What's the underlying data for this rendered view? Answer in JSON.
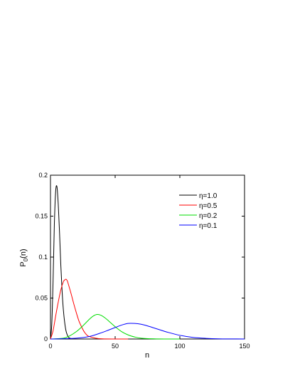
{
  "chart_data": {
    "type": "line",
    "xlabel": "n",
    "ylabel_main": "P",
    "ylabel_sub": "0",
    "ylabel_tail": "(n)",
    "xlim": [
      0,
      150
    ],
    "ylim": [
      0,
      0.2
    ],
    "xticks": [
      0,
      50,
      100,
      150
    ],
    "xtick_labels": [
      "0",
      "50",
      "100",
      "150"
    ],
    "yticks": [
      0,
      0.05,
      0.1,
      0.15,
      0.2
    ],
    "ytick_labels": [
      "0",
      "0.05",
      "0.1",
      "0.15",
      "0.2"
    ],
    "grid": false,
    "legend_position": "top-right",
    "series": [
      {
        "name": "η=1.0",
        "color": "#000000",
        "x": [
          0,
          1,
          2,
          3,
          4,
          5,
          6,
          7,
          8,
          9,
          10,
          11,
          12,
          13,
          14,
          16,
          20,
          30,
          40
        ],
        "y": [
          0,
          0.018,
          0.07,
          0.14,
          0.18,
          0.186,
          0.165,
          0.13,
          0.09,
          0.058,
          0.035,
          0.02,
          0.01,
          0.005,
          0.002,
          0.0005,
          0,
          0,
          0
        ]
      },
      {
        "name": "η=0.5",
        "color": "#ff0000",
        "x": [
          0,
          2,
          4,
          6,
          8,
          10,
          11,
          12,
          13,
          14,
          16,
          18,
          20,
          22,
          24,
          26,
          28,
          30,
          35,
          40,
          50,
          60
        ],
        "y": [
          0,
          0.01,
          0.028,
          0.045,
          0.06,
          0.07,
          0.072,
          0.073,
          0.071,
          0.066,
          0.055,
          0.043,
          0.032,
          0.022,
          0.015,
          0.009,
          0.005,
          0.003,
          0.001,
          0.0002,
          0,
          0
        ]
      },
      {
        "name": "η=0.2",
        "color": "#00dd00",
        "x": [
          0,
          10,
          15,
          20,
          25,
          30,
          33,
          36,
          39,
          42,
          45,
          50,
          55,
          60,
          65,
          70,
          80,
          90,
          100
        ],
        "y": [
          0,
          0.001,
          0.004,
          0.009,
          0.016,
          0.024,
          0.028,
          0.03,
          0.029,
          0.026,
          0.022,
          0.015,
          0.009,
          0.005,
          0.0025,
          0.001,
          0.0002,
          0,
          0
        ]
      },
      {
        "name": "η=0.1",
        "color": "#0000ff",
        "x": [
          0,
          20,
          30,
          40,
          45,
          50,
          55,
          60,
          65,
          70,
          75,
          80,
          85,
          90,
          100,
          110,
          120,
          130,
          140,
          150
        ],
        "y": [
          0,
          0.001,
          0.003,
          0.008,
          0.011,
          0.014,
          0.017,
          0.019,
          0.019,
          0.018,
          0.016,
          0.0135,
          0.011,
          0.0085,
          0.0045,
          0.002,
          0.0008,
          0.0002,
          0.0001,
          0
        ]
      }
    ]
  }
}
